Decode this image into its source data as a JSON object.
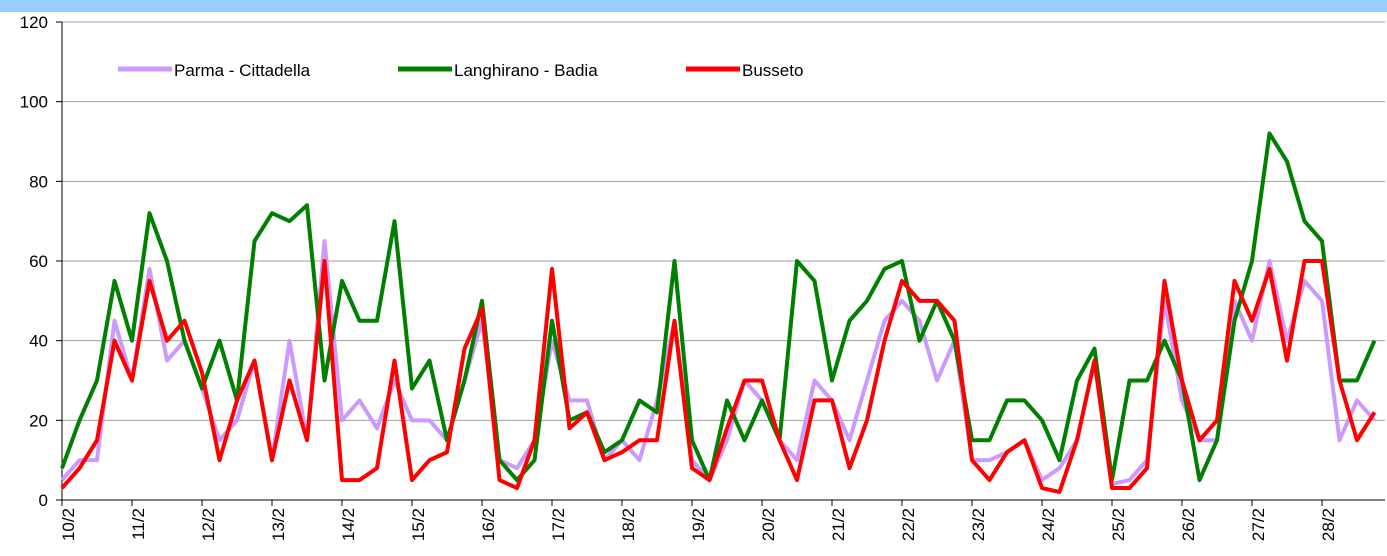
{
  "chart_data": {
    "type": "line",
    "categories": [
      "10/2",
      null,
      null,
      null,
      "11/2",
      null,
      null,
      null,
      "12/2",
      null,
      null,
      null,
      "13/2",
      null,
      null,
      null,
      "14/2",
      null,
      null,
      null,
      "15/2",
      null,
      null,
      null,
      "16/2",
      null,
      null,
      null,
      "17/2",
      null,
      null,
      null,
      "18/2",
      null,
      null,
      null,
      "19/2",
      null,
      null,
      null,
      "20/2",
      null,
      null,
      null,
      "21/2",
      null,
      null,
      null,
      "22/2",
      null,
      null,
      null,
      "23/2",
      null,
      null,
      null,
      "24/2",
      null,
      null,
      null,
      "25/2",
      null,
      null,
      null,
      "26/2",
      null,
      null,
      null,
      "27/2",
      null,
      null,
      null,
      "28/2",
      null,
      null,
      null
    ],
    "series": [
      {
        "name": "Parma - Cittadella",
        "color": "#cc99ff",
        "values": [
          5,
          10,
          10,
          45,
          30,
          58,
          35,
          40,
          28,
          15,
          20,
          35,
          10,
          40,
          15,
          65,
          20,
          25,
          18,
          30,
          20,
          20,
          15,
          30,
          45,
          10,
          8,
          15,
          40,
          25,
          25,
          10,
          15,
          10,
          25,
          45,
          10,
          5,
          15,
          30,
          25,
          15,
          10,
          30,
          25,
          15,
          30,
          45,
          50,
          45,
          30,
          40,
          10,
          10,
          12,
          15,
          5,
          8,
          15,
          35,
          4,
          5,
          10,
          50,
          25,
          15,
          15,
          50,
          40,
          60,
          40,
          55,
          50,
          15,
          25,
          20
        ]
      },
      {
        "name": "Langhirano - Badia",
        "color": "#008000",
        "values": [
          8,
          20,
          30,
          55,
          40,
          72,
          60,
          40,
          28,
          40,
          25,
          65,
          72,
          70,
          74,
          30,
          55,
          45,
          45,
          70,
          28,
          35,
          15,
          30,
          50,
          10,
          5,
          10,
          45,
          20,
          22,
          12,
          15,
          25,
          22,
          60,
          15,
          5,
          25,
          15,
          25,
          15,
          60,
          55,
          30,
          45,
          50,
          58,
          60,
          40,
          50,
          40,
          15,
          15,
          25,
          25,
          20,
          10,
          30,
          38,
          5,
          30,
          30,
          40,
          30,
          5,
          15,
          45,
          60,
          92,
          85,
          70,
          65,
          30,
          30,
          40
        ]
      },
      {
        "name": "Busseto",
        "color": "#ff0000",
        "values": [
          3,
          8,
          15,
          40,
          30,
          55,
          40,
          45,
          32,
          10,
          25,
          35,
          10,
          30,
          15,
          60,
          5,
          5,
          8,
          35,
          5,
          10,
          12,
          38,
          48,
          5,
          3,
          15,
          58,
          18,
          22,
          10,
          12,
          15,
          15,
          45,
          8,
          5,
          18,
          30,
          30,
          15,
          5,
          25,
          25,
          8,
          20,
          40,
          55,
          50,
          50,
          45,
          10,
          5,
          12,
          15,
          3,
          2,
          15,
          35,
          3,
          3,
          8,
          55,
          30,
          15,
          20,
          55,
          45,
          58,
          35,
          60,
          60,
          30,
          15,
          22
        ]
      }
    ],
    "ylim": [
      0,
      120
    ],
    "yticks": [
      0,
      20,
      40,
      60,
      80,
      100,
      120
    ],
    "grid": true
  }
}
